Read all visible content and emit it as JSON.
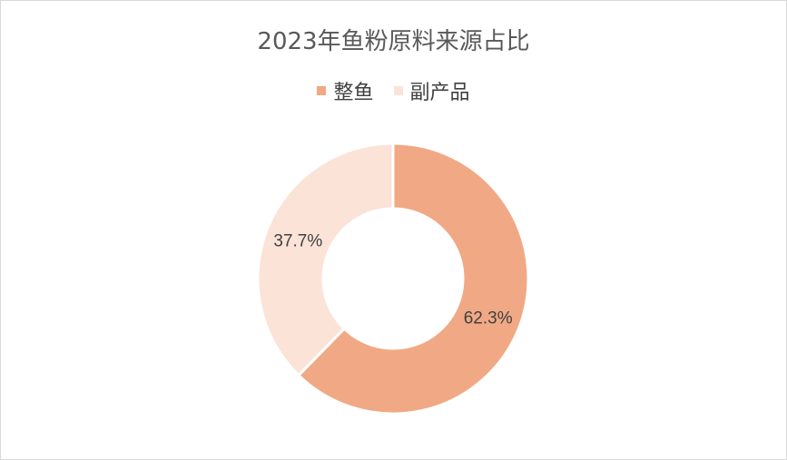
{
  "chart_data": {
    "type": "pie",
    "subtype": "doughnut",
    "title": "2023年鱼粉原料来源占比",
    "categories": [
      "整鱼",
      "副产品"
    ],
    "values": [
      62.3,
      37.7
    ],
    "data_labels": [
      "62.3%",
      "37.7%"
    ],
    "colors": [
      "#F0A984",
      "#FBE3D8"
    ],
    "legend_position": "top"
  }
}
